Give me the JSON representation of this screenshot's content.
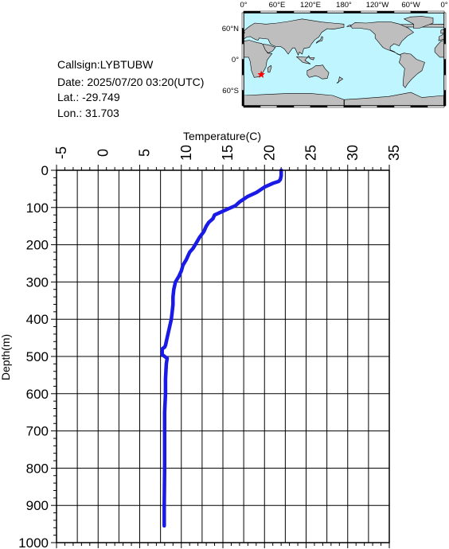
{
  "info": {
    "callsign": "Callsign:LYBTUBW",
    "date": "Date:  2025/07/20 03:20(UTC)",
    "lat": "Lat.:  -29.749",
    "lon": "Lon.:   31.703"
  },
  "map": {
    "top_labels": [
      "0°",
      "60°E",
      "120°E",
      "180°",
      "120°W",
      "60°W",
      "0°"
    ],
    "left_labels": [
      "60°N",
      "0°",
      "60°S"
    ],
    "ocean_color": "#bff5ff",
    "land_color": "#bebebe",
    "marker": {
      "lon": 31.703,
      "lat": -29.749,
      "color": "#ff0000",
      "symbol": "star"
    }
  },
  "chart_data": {
    "type": "line",
    "xlabel": "Temperature(C)",
    "ylabel": "Depth(m)",
    "xlim": [
      -5,
      35
    ],
    "ylim": [
      0,
      1000
    ],
    "y_inverted": true,
    "x_ticks": [
      -5,
      0,
      5,
      10,
      15,
      20,
      25,
      30,
      35
    ],
    "y_ticks": [
      0,
      100,
      200,
      300,
      400,
      500,
      600,
      700,
      800,
      900,
      1000
    ],
    "grid": true,
    "line_color": "#1a1ae6",
    "series": [
      {
        "x": [
          22.0,
          22.0,
          21.9,
          21.7,
          21.0,
          20.0,
          19.0,
          18.0,
          17.0,
          16.5,
          15.5,
          14.5,
          14.0,
          13.8,
          13.3,
          13.0,
          12.7,
          12.2,
          11.8,
          11.4,
          11.0,
          10.6,
          10.2,
          10.0,
          9.7,
          9.3,
          9.1,
          9.0,
          9.0,
          8.9,
          8.8,
          8.6,
          8.4,
          8.2,
          8.1,
          8.0,
          7.7,
          7.7,
          8.0,
          8.3,
          8.2,
          8.1,
          8.1,
          8.0,
          8.0,
          8.0,
          7.95,
          7.95
        ],
        "y": [
          0,
          15,
          25,
          30,
          35,
          45,
          60,
          70,
          85,
          95,
          105,
          115,
          120,
          130,
          140,
          150,
          165,
          180,
          195,
          210,
          220,
          240,
          255,
          270,
          285,
          300,
          320,
          340,
          360,
          380,
          400,
          420,
          440,
          460,
          470,
          475,
          480,
          495,
          500,
          505,
          520,
          560,
          600,
          650,
          700,
          800,
          900,
          955
        ]
      }
    ]
  }
}
